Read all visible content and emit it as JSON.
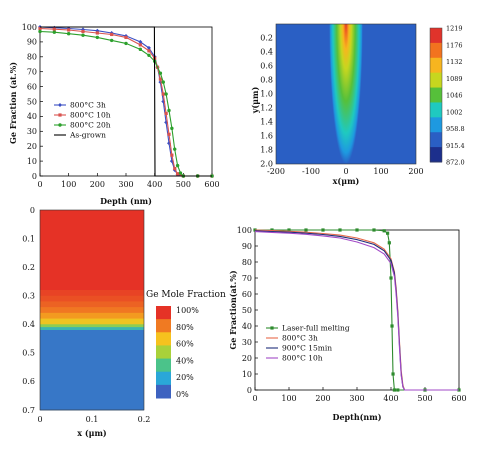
{
  "chart_data": [
    {
      "panel": "top-left",
      "type": "line",
      "xlabel": "Depth (nm)",
      "ylabel": "Ge Fraction (at.%)",
      "xlim": [
        0,
        600
      ],
      "ylim": [
        0,
        100
      ],
      "xticks": [
        "0",
        "100",
        "200",
        "300",
        "400",
        "500",
        "600"
      ],
      "yticks": [
        "0",
        "10",
        "20",
        "30",
        "40",
        "50",
        "60",
        "70",
        "80",
        "90",
        "100"
      ],
      "legend_position": "lower-left",
      "grid": false,
      "series": [
        {
          "name": "800°C 3h",
          "color": "#3b4fc4",
          "marker": "diamond",
          "x": [
            0,
            50,
            100,
            150,
            200,
            250,
            300,
            350,
            380,
            400,
            410,
            420,
            430,
            440,
            450,
            460,
            470,
            480,
            500,
            550,
            600
          ],
          "y": [
            100,
            99.5,
            99,
            98.3,
            97.5,
            96,
            94,
            90,
            86,
            80,
            73,
            63,
            50,
            36,
            22,
            10,
            4,
            1,
            0,
            0,
            0
          ]
        },
        {
          "name": "800°C 10h",
          "color": "#d9534f",
          "marker": "square",
          "x": [
            0,
            50,
            100,
            150,
            200,
            250,
            300,
            350,
            380,
            400,
            410,
            420,
            430,
            440,
            450,
            460,
            470,
            480,
            500,
            550,
            600
          ],
          "y": [
            99,
            98.5,
            98,
            97,
            96,
            95,
            93,
            88,
            84,
            79,
            73,
            65,
            55,
            42,
            28,
            14,
            5,
            1.5,
            0,
            0,
            0
          ]
        },
        {
          "name": "800°C 20h",
          "color": "#2ca02c",
          "marker": "circle",
          "x": [
            0,
            50,
            100,
            150,
            200,
            250,
            300,
            350,
            380,
            400,
            420,
            430,
            440,
            450,
            460,
            470,
            480,
            490,
            500,
            550,
            600
          ],
          "y": [
            97,
            96.5,
            95.5,
            94.5,
            93,
            91,
            89,
            85,
            81,
            77,
            69,
            63,
            55,
            44,
            32,
            18,
            7,
            2,
            0,
            0,
            0
          ]
        },
        {
          "name": "As-grown",
          "color": "#000000",
          "marker": "none",
          "x": [
            0,
            399,
            400,
            401,
            600
          ],
          "y": [
            100,
            100,
            50,
            0,
            0
          ]
        }
      ]
    },
    {
      "panel": "top-right",
      "type": "heatmap",
      "xlabel": "x(μm)",
      "ylabel": "y(μm)",
      "xlim": [
        -200,
        200
      ],
      "ylim": [
        0,
        2.0
      ],
      "xticks": [
        "-200",
        "-100",
        "0",
        "100",
        "200"
      ],
      "yticks": [
        "0.2",
        "0.4",
        "0.6",
        "0.8",
        "1.0",
        "1.2",
        "1.4",
        "1.6",
        "1.8",
        "2.0"
      ],
      "colorbar": {
        "labels": [
          "1219",
          "1176",
          "1132",
          "1089",
          "1046",
          "1002",
          "958.8",
          "915.4",
          "872.0"
        ],
        "colors": [
          "#e0332b",
          "#f2731f",
          "#f7b51f",
          "#c7d61f",
          "#56c03a",
          "#1fc9c0",
          "#1e99e0",
          "#2a5fc4",
          "#1c2f8c"
        ]
      }
    },
    {
      "panel": "bottom-left",
      "type": "heatmap",
      "xlabel": "x (μm)",
      "ylabel": "",
      "xlim": [
        0,
        0.2
      ],
      "ylim": [
        0,
        0.7
      ],
      "xticks": [
        "0",
        "0.1",
        "0.2"
      ],
      "yticks": [
        "0",
        "0.1",
        "0.2",
        "0.3",
        "0.4",
        "0.5",
        "0.6",
        "0.7"
      ],
      "profile_y": [
        0,
        0.28,
        0.3,
        0.32,
        0.34,
        0.36,
        0.38,
        0.4,
        0.41,
        0.42,
        0.7
      ],
      "profile_fraction": [
        100,
        96,
        93,
        89,
        84,
        76,
        65,
        45,
        25,
        5,
        0
      ],
      "colorbar": {
        "title": "Ge Mole Fraction",
        "labels": [
          "100%",
          "80%",
          "60%",
          "40%",
          "20%",
          "0%"
        ],
        "colors": [
          "#e53226",
          "#f07a22",
          "#f6c21e",
          "#a9d13a",
          "#4bc38a",
          "#2aa7d8",
          "#3d62c0"
        ]
      }
    },
    {
      "panel": "bottom-right",
      "type": "line",
      "xlabel": "Depth(nm)",
      "ylabel": "Ge Fraction(at.%)",
      "xlim": [
        0,
        600
      ],
      "ylim": [
        0,
        100
      ],
      "xticks": [
        "0",
        "100",
        "200",
        "300",
        "400",
        "500",
        "600"
      ],
      "yticks": [
        "0",
        "10",
        "20",
        "30",
        "40",
        "50",
        "60",
        "70",
        "80",
        "90",
        "100"
      ],
      "legend_position": "lower-left",
      "grid": false,
      "series": [
        {
          "name": "Laser-full melting",
          "color": "#2e8b2e",
          "marker": "square",
          "x": [
            0,
            50,
            100,
            150,
            200,
            250,
            300,
            350,
            380,
            390,
            395,
            400,
            403,
            406,
            410,
            420,
            500,
            600
          ],
          "y": [
            100,
            100,
            100,
            100,
            100,
            100,
            100,
            100,
            99.5,
            98,
            92,
            70,
            40,
            10,
            0,
            0,
            0,
            0
          ]
        },
        {
          "name": "800°C 3h",
          "color": "#e66a4a",
          "marker": "none",
          "x": [
            0,
            50,
            100,
            150,
            200,
            250,
            300,
            350,
            380,
            400,
            410,
            415,
            420,
            425,
            430,
            435,
            440,
            500,
            600
          ],
          "y": [
            100,
            99.6,
            99.2,
            98.6,
            97.8,
            96.8,
            95,
            92,
            88,
            82,
            74,
            64,
            50,
            30,
            12,
            3,
            0,
            0,
            0
          ]
        },
        {
          "name": "900°C 15min",
          "color": "#1f2f7a",
          "marker": "none",
          "x": [
            0,
            50,
            100,
            150,
            200,
            250,
            300,
            350,
            380,
            400,
            410,
            415,
            420,
            425,
            430,
            435,
            440,
            500,
            600
          ],
          "y": [
            99.5,
            99,
            98.6,
            98,
            97.2,
            96,
            94,
            91,
            87,
            81,
            73,
            62,
            48,
            28,
            10,
            2,
            0,
            0,
            0
          ]
        },
        {
          "name": "800°C 10h",
          "color": "#a24ac7",
          "marker": "none",
          "x": [
            0,
            50,
            100,
            150,
            200,
            250,
            300,
            350,
            380,
            400,
            410,
            415,
            420,
            425,
            430,
            435,
            440,
            500,
            600
          ],
          "y": [
            99,
            98.5,
            98,
            97.3,
            96.3,
            95,
            92.5,
            89,
            85,
            79,
            71,
            60,
            46,
            26,
            9,
            2,
            0,
            0,
            0
          ]
        }
      ]
    }
  ]
}
